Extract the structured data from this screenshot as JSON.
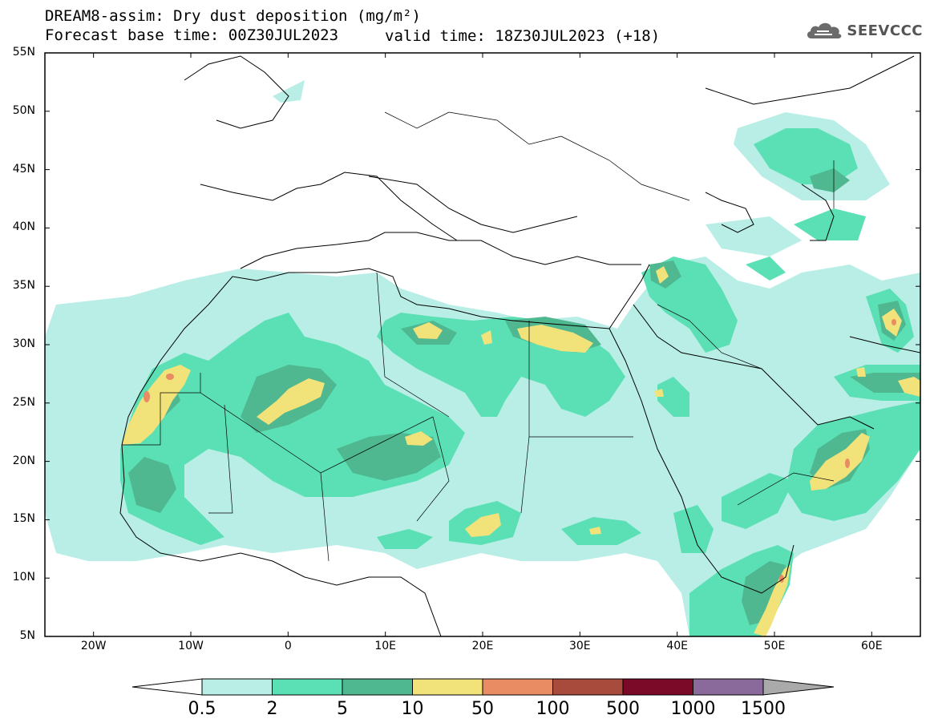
{
  "header": {
    "title_line1": "DREAM8-assim: Dry dust deposition (mg/m²)",
    "title_line2_left": "Forecast base time: 00Z30JUL2023",
    "title_line2_right": "valid time: 18Z30JUL2023 (+18)",
    "logo_text": "SEEVCCC",
    "logo_icon": "cloud-icon"
  },
  "axes": {
    "lat_labels": [
      "55N",
      "50N",
      "45N",
      "40N",
      "35N",
      "30N",
      "25N",
      "20N",
      "15N",
      "10N",
      "5N"
    ],
    "lon_labels": [
      "20W",
      "10W",
      "0",
      "10E",
      "20E",
      "30E",
      "40E",
      "50E",
      "60E"
    ],
    "lat_range": [
      5,
      55
    ],
    "lon_range": [
      -25,
      65
    ]
  },
  "legend": {
    "levels": [
      "0.5",
      "2",
      "5",
      "10",
      "50",
      "100",
      "500",
      "1000",
      "1500"
    ],
    "colors": [
      "#b8eee6",
      "#5ae0b4",
      "#50b890",
      "#f2e27a",
      "#e98b63",
      "#a84a3c",
      "#7a0a28",
      "#8a6a9a"
    ],
    "low_color": "#ffffff",
    "high_color": "#aaaaaa"
  }
}
